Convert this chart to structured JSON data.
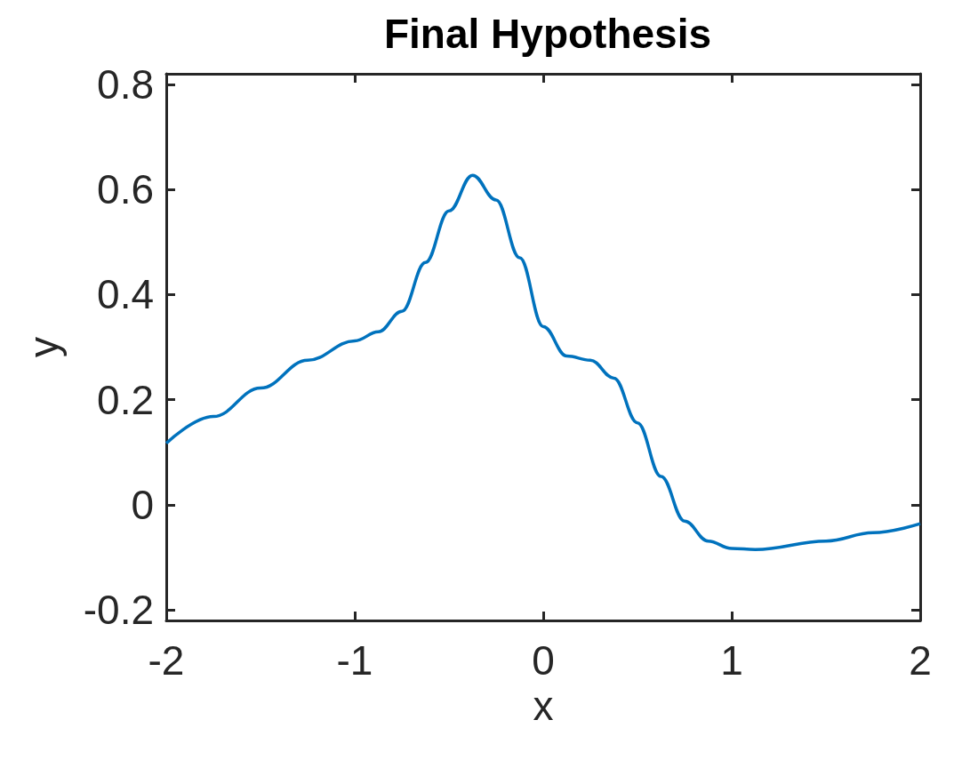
{
  "chart_data": {
    "type": "line",
    "title": "Final Hypothesis",
    "xlabel": "x",
    "ylabel": "y",
    "x": [
      -2,
      -1.75,
      -1.5,
      -1.25,
      -1,
      -0.875,
      -0.75,
      -0.625,
      -0.5,
      -0.375,
      -0.25,
      -0.125,
      0,
      0.125,
      0.25,
      0.375,
      0.5,
      0.625,
      0.75,
      0.875,
      1,
      1.125,
      1.5,
      1.75,
      2
    ],
    "series": [
      {
        "color": "#0072bd",
        "values": [
          0.117,
          0.168,
          0.222,
          0.275,
          0.312,
          0.329,
          0.368,
          0.461,
          0.559,
          0.627,
          0.58,
          0.47,
          0.339,
          0.283,
          0.275,
          0.241,
          0.156,
          0.054,
          -0.031,
          -0.069,
          -0.083,
          -0.085,
          -0.069,
          -0.053,
          -0.036
        ]
      }
    ],
    "xlim": [
      -2,
      2
    ],
    "xticks": [
      -2,
      -1,
      0,
      1,
      2
    ],
    "ylim": [
      -0.22,
      0.82
    ],
    "yticks": [
      -0.2,
      0,
      0.2,
      0.4,
      0.6,
      0.8
    ],
    "grid": false,
    "marker": "none",
    "line_style": "solid"
  }
}
